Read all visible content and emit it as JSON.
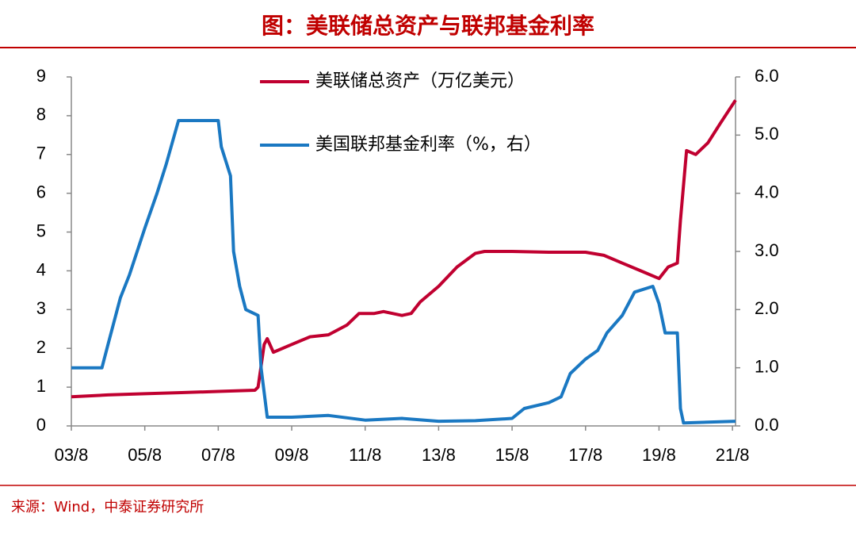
{
  "chart_data": {
    "type": "line",
    "title": "图：美联储总资产与联邦基金利率",
    "source": "来源：Wind，中泰证券研究所",
    "xlim": [
      "03/8",
      "21/9"
    ],
    "xticks": [
      "03/8",
      "05/8",
      "07/8",
      "09/8",
      "11/8",
      "13/8",
      "15/8",
      "17/8",
      "19/8",
      "21/8"
    ],
    "ylim": [
      0,
      9
    ],
    "yticks": [
      0,
      1,
      2,
      3,
      4,
      5,
      6,
      7,
      8,
      9
    ],
    "y2lim": [
      0,
      6
    ],
    "y2ticks": [
      {
        "value": 0,
        "label": "0.0"
      },
      {
        "value": 1,
        "label": "1.0"
      },
      {
        "value": 2,
        "label": "2.0"
      },
      {
        "value": 3,
        "label": "3.0"
      },
      {
        "value": 4,
        "label": "4.0"
      },
      {
        "value": 5,
        "label": "5.0"
      },
      {
        "value": 6,
        "label": "6.0"
      }
    ],
    "series": [
      {
        "name": "美联储总资产（万亿美元）",
        "color": "#c00030",
        "x": [
          "03/8",
          "04/8",
          "05/8",
          "06/8",
          "07/8",
          "08/8",
          "08/9",
          "08/11",
          "08/12",
          "09/2",
          "09/8",
          "10/2",
          "10/8",
          "11/2",
          "11/6",
          "11/11",
          "12/2",
          "12/8",
          "12/11",
          "13/2",
          "13/8",
          "14/2",
          "14/8",
          "14/11",
          "15/8",
          "16/8",
          "17/8",
          "18/2",
          "18/8",
          "19/2",
          "19/8",
          "19/11",
          "20/2",
          "20/3",
          "20/5",
          "20/8",
          "20/12",
          "21/4",
          "21/9"
        ],
        "values": [
          0.75,
          0.8,
          0.83,
          0.86,
          0.89,
          0.92,
          1.0,
          2.1,
          2.25,
          1.9,
          2.1,
          2.3,
          2.35,
          2.6,
          2.9,
          2.9,
          2.95,
          2.85,
          2.9,
          3.2,
          3.6,
          4.1,
          4.45,
          4.5,
          4.5,
          4.48,
          4.48,
          4.4,
          4.2,
          4.0,
          3.8,
          4.1,
          4.2,
          5.3,
          7.1,
          7.0,
          7.3,
          7.8,
          8.4
        ]
      },
      {
        "name": "美国联邦基金利率（%，右）",
        "color": "#1a78c2",
        "axis": "y2",
        "x": [
          "03/8",
          "03/10",
          "04/1",
          "04/6",
          "04/8",
          "04/12",
          "05/3",
          "05/8",
          "05/12",
          "06/3",
          "06/7",
          "07/8",
          "07/9",
          "07/12",
          "08/1",
          "08/3",
          "08/5",
          "08/9",
          "08/10",
          "08/12",
          "09/8",
          "10/8",
          "11/8",
          "12/8",
          "13/8",
          "14/8",
          "15/8",
          "15/12",
          "16/8",
          "16/12",
          "17/3",
          "17/8",
          "17/12",
          "18/3",
          "18/8",
          "18/12",
          "19/6",
          "19/8",
          "19/10",
          "20/2",
          "20/3",
          "20/4",
          "21/9"
        ],
        "values": [
          1.0,
          1.0,
          1.0,
          1.0,
          1.4,
          2.2,
          2.6,
          3.4,
          4.0,
          4.5,
          5.25,
          5.25,
          4.8,
          4.3,
          3.0,
          2.4,
          2.0,
          1.9,
          1.0,
          0.15,
          0.15,
          0.18,
          0.1,
          0.13,
          0.08,
          0.09,
          0.13,
          0.3,
          0.4,
          0.5,
          0.9,
          1.15,
          1.3,
          1.6,
          1.9,
          2.3,
          2.4,
          2.1,
          1.6,
          1.6,
          0.3,
          0.05,
          0.08
        ]
      }
    ]
  }
}
